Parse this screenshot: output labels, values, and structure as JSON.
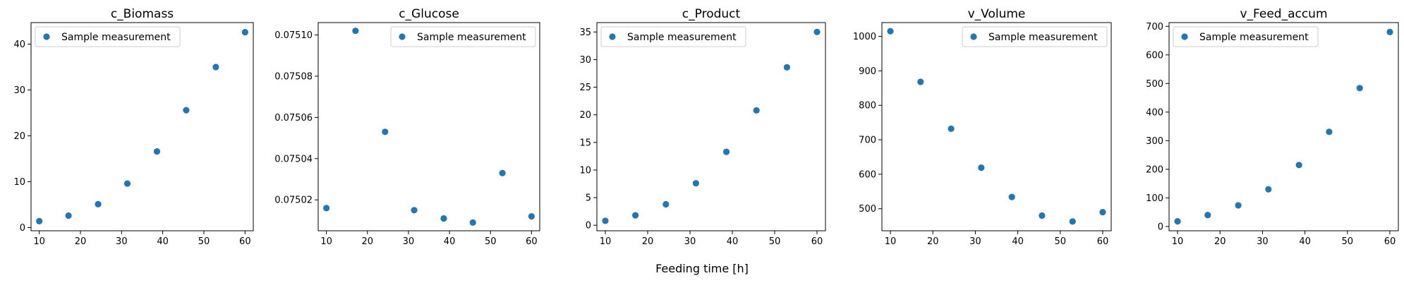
{
  "marker_color": "#1f77b4",
  "xlabel": "Feeding time [h]",
  "chart_data": [
    {
      "type": "scatter",
      "title": "c_Biomass",
      "series": [
        {
          "name": "Sample measurement",
          "x": [
            10,
            17.1,
            24.3,
            31.4,
            38.6,
            45.7,
            52.9,
            60
          ],
          "y": [
            1.4,
            2.6,
            5.1,
            9.6,
            16.6,
            25.6,
            35.0,
            42.6
          ]
        }
      ],
      "legend": "upper left",
      "xlim": [
        8,
        62
      ],
      "ylim": [
        -0.7,
        44.7
      ],
      "xticks": [
        10,
        20,
        30,
        40,
        50,
        60
      ],
      "yticks": [
        0,
        10,
        20,
        30,
        40
      ],
      "ytick_labels": [
        "0",
        "10",
        "20",
        "30",
        "40"
      ]
    },
    {
      "type": "scatter",
      "title": "c_Glucose",
      "series": [
        {
          "name": "Sample measurement",
          "x": [
            10,
            17.1,
            24.3,
            31.4,
            38.6,
            45.7,
            52.9,
            60
          ],
          "y": [
            0.075016,
            0.075102,
            0.075053,
            0.075015,
            0.075011,
            0.075009,
            0.075033,
            0.075012
          ]
        }
      ],
      "legend": "upper right",
      "xlim": [
        8,
        62
      ],
      "ylim": [
        0.075005,
        0.075106
      ],
      "xticks": [
        10,
        20,
        30,
        40,
        50,
        60
      ],
      "yticks": [
        0.07502,
        0.07504,
        0.07506,
        0.07508,
        0.0751
      ],
      "ytick_labels": [
        "0.07502",
        "0.07504",
        "0.07506",
        "0.07508",
        "0.07510"
      ]
    },
    {
      "type": "scatter",
      "title": "c_Product",
      "series": [
        {
          "name": "Sample measurement",
          "x": [
            10,
            17.1,
            24.3,
            31.4,
            38.6,
            45.7,
            52.9,
            60
          ],
          "y": [
            0.8,
            1.8,
            3.8,
            7.6,
            13.3,
            20.8,
            28.6,
            35.0
          ]
        }
      ],
      "legend": "upper left",
      "xlim": [
        8,
        62
      ],
      "ylim": [
        -1.0,
        36.7
      ],
      "xticks": [
        10,
        20,
        30,
        40,
        50,
        60
      ],
      "yticks": [
        0,
        5,
        10,
        15,
        20,
        25,
        30,
        35
      ],
      "ytick_labels": [
        "0",
        "5",
        "10",
        "15",
        "20",
        "25",
        "30",
        "35"
      ]
    },
    {
      "type": "scatter",
      "title": "v_Volume",
      "series": [
        {
          "name": "Sample measurement",
          "x": [
            10,
            17.1,
            24.3,
            31.4,
            38.6,
            45.7,
            52.9,
            60
          ],
          "y": [
            1015,
            868,
            732,
            619,
            534,
            480,
            463,
            490
          ]
        }
      ],
      "legend": "upper right",
      "xlim": [
        8,
        62
      ],
      "ylim": [
        436,
        1040
      ],
      "xticks": [
        10,
        20,
        30,
        40,
        50,
        60
      ],
      "yticks": [
        500,
        600,
        700,
        800,
        900,
        1000
      ],
      "ytick_labels": [
        "500",
        "600",
        "700",
        "800",
        "900",
        "1000"
      ]
    },
    {
      "type": "scatter",
      "title": "v_Feed_accum",
      "series": [
        {
          "name": "Sample measurement",
          "x": [
            10,
            17.1,
            24.3,
            31.4,
            38.6,
            45.7,
            52.9,
            60
          ],
          "y": [
            18,
            40,
            74,
            130,
            215,
            331,
            484,
            680
          ]
        }
      ],
      "legend": "upper left",
      "xlim": [
        8,
        62
      ],
      "ylim": [
        -15,
        713
      ],
      "xticks": [
        10,
        20,
        30,
        40,
        50,
        60
      ],
      "yticks": [
        0,
        100,
        200,
        300,
        400,
        500,
        600,
        700
      ],
      "ytick_labels": [
        "0",
        "100",
        "200",
        "300",
        "400",
        "500",
        "600",
        "700"
      ]
    }
  ]
}
